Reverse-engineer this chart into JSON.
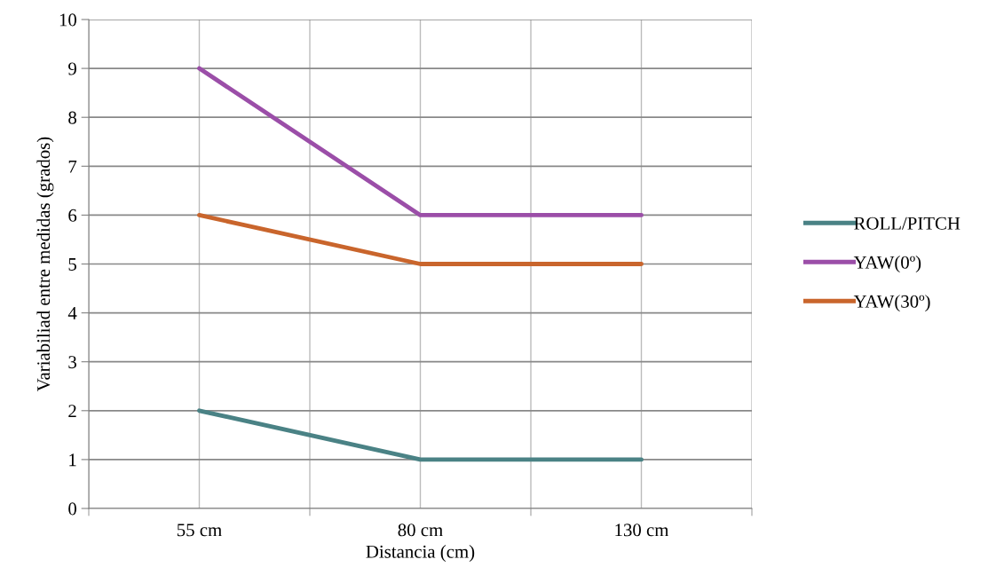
{
  "chart_data": {
    "type": "line",
    "xlabel": "Distancia (cm)",
    "ylabel": "Variabiliad entre medidas (grados)",
    "categories": [
      "55 cm",
      "80 cm",
      "130 cm"
    ],
    "series": [
      {
        "name": "ROLL/PITCH",
        "color": "#4a8285",
        "values": [
          2,
          1,
          1
        ]
      },
      {
        "name": "YAW(0º)",
        "color": "#9b4ea8",
        "values": [
          9,
          6,
          6
        ]
      },
      {
        "name": "YAW(30º)",
        "color": "#c9652c",
        "values": [
          6,
          5,
          5
        ]
      }
    ],
    "ylim": [
      0,
      10
    ],
    "yticks": [
      0,
      1,
      2,
      3,
      4,
      5,
      6,
      7,
      8,
      9,
      10
    ],
    "grid": true,
    "legend": "right",
    "marker": "none",
    "line_style": "solid"
  }
}
